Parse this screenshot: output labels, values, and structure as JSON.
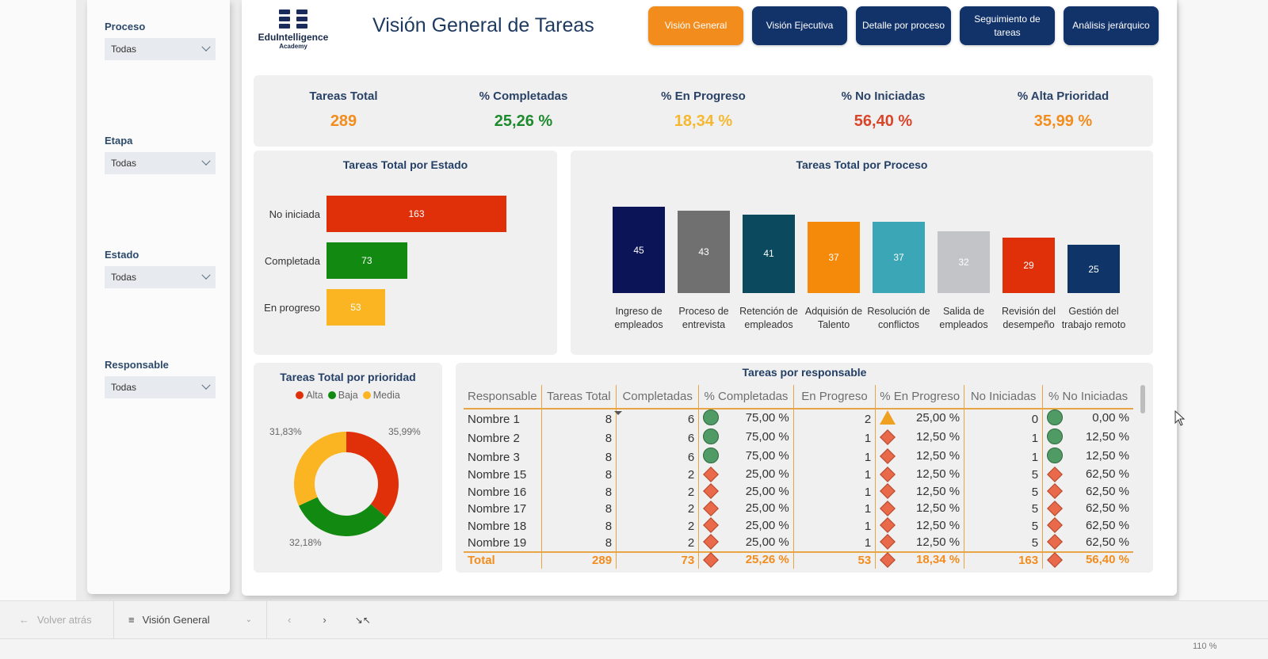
{
  "sidebar": {
    "filters": [
      {
        "label": "Proceso",
        "value": "Todas"
      },
      {
        "label": "Etapa",
        "value": "Todas"
      },
      {
        "label": "Estado",
        "value": "Todas"
      },
      {
        "label": "Responsable",
        "value": "Todas"
      }
    ]
  },
  "header": {
    "logo_name": "EduIntelligence",
    "logo_sub": "Academy",
    "title": "Visión General de Tareas",
    "nav": [
      {
        "label": "Visión General",
        "active": true
      },
      {
        "label": "Visión Ejecutiva",
        "active": false
      },
      {
        "label": "Detalle por proceso",
        "active": false
      },
      {
        "label": "Seguimiento de tareas",
        "active": false
      },
      {
        "label": "Análisis jerárquico",
        "active": false
      }
    ]
  },
  "kpis": [
    {
      "label": "Tareas Total",
      "value": "289",
      "color": "#f28c1c"
    },
    {
      "label": "% Completadas",
      "value": "25,26 %",
      "color": "#1e8a2e"
    },
    {
      "label": "% En Progreso",
      "value": "18,34 %",
      "color": "#f5b830"
    },
    {
      "label": "% No Iniciadas",
      "value": "56,40 %",
      "color": "#d9452a"
    },
    {
      "label": "% Alta Prioridad",
      "value": "35,99 %",
      "color": "#f28c1c"
    }
  ],
  "chart_data": [
    {
      "type": "bar",
      "orientation": "horizontal",
      "title": "Tareas Total por Estado",
      "categories": [
        "No iniciada",
        "Completada",
        "En progreso"
      ],
      "values": [
        163,
        73,
        53
      ],
      "colors": [
        "#e0300a",
        "#128a12",
        "#fbb522"
      ]
    },
    {
      "type": "bar",
      "orientation": "vertical",
      "title": "Tareas Total por Proceso",
      "categories": [
        "Ingreso de empleados",
        "Proceso de entrevista",
        "Retención de empleados",
        "Adquisión de Talento",
        "Resolución de conflictos",
        "Salida de empleados",
        "Revisión del desempeño",
        "Gestión del trabajo remoto"
      ],
      "values": [
        45,
        43,
        41,
        37,
        37,
        32,
        29,
        25
      ],
      "colors": [
        "#0c1458",
        "#707070",
        "#0b4a5e",
        "#f58a0a",
        "#3aa6b6",
        "#c2c4c8",
        "#e0300a",
        "#0f3468"
      ]
    },
    {
      "type": "pie",
      "variant": "donut",
      "title": "Tareas Total por prioridad",
      "legend": [
        "Alta",
        "Baja",
        "Media"
      ],
      "legend_position": "top",
      "slices": [
        {
          "name": "Alta",
          "value": 35.99,
          "label": "35,99%",
          "color": "#e0300a"
        },
        {
          "name": "Baja",
          "value": 32.18,
          "label": "32,18%",
          "color": "#128a12"
        },
        {
          "name": "Media",
          "value": 31.83,
          "label": "31,83%",
          "color": "#fbb522"
        }
      ]
    }
  ],
  "table": {
    "title": "Tareas por responsable",
    "columns": [
      "Responsable",
      "Tareas Total",
      "Completadas",
      "% Completadas",
      "En Progreso",
      "% En Progreso",
      "No Iniciadas",
      "% No Iniciadas"
    ],
    "sorted_column": "Completadas",
    "rows": [
      {
        "name": "Nombre 1",
        "total": "8",
        "comp": "6",
        "comp_pct": "75,00 %",
        "comp_ind": "circle",
        "prog": "2",
        "prog_pct": "25,00 %",
        "prog_ind": "triangle",
        "noini": "0",
        "noini_pct": "0,00 %",
        "noini_ind": "circle"
      },
      {
        "name": "Nombre 2",
        "total": "8",
        "comp": "6",
        "comp_pct": "75,00 %",
        "comp_ind": "circle",
        "prog": "1",
        "prog_pct": "12,50 %",
        "prog_ind": "diamond",
        "noini": "1",
        "noini_pct": "12,50 %",
        "noini_ind": "circle"
      },
      {
        "name": "Nombre 3",
        "total": "8",
        "comp": "6",
        "comp_pct": "75,00 %",
        "comp_ind": "circle",
        "prog": "1",
        "prog_pct": "12,50 %",
        "prog_ind": "diamond",
        "noini": "1",
        "noini_pct": "12,50 %",
        "noini_ind": "circle"
      },
      {
        "name": "Nombre 15",
        "total": "8",
        "comp": "2",
        "comp_pct": "25,00 %",
        "comp_ind": "diamond",
        "prog": "1",
        "prog_pct": "12,50 %",
        "prog_ind": "diamond",
        "noini": "5",
        "noini_pct": "62,50 %",
        "noini_ind": "diamond"
      },
      {
        "name": "Nombre 16",
        "total": "8",
        "comp": "2",
        "comp_pct": "25,00 %",
        "comp_ind": "diamond",
        "prog": "1",
        "prog_pct": "12,50 %",
        "prog_ind": "diamond",
        "noini": "5",
        "noini_pct": "62,50 %",
        "noini_ind": "diamond"
      },
      {
        "name": "Nombre 17",
        "total": "8",
        "comp": "2",
        "comp_pct": "25,00 %",
        "comp_ind": "diamond",
        "prog": "1",
        "prog_pct": "12,50 %",
        "prog_ind": "diamond",
        "noini": "5",
        "noini_pct": "62,50 %",
        "noini_ind": "diamond"
      },
      {
        "name": "Nombre 18",
        "total": "8",
        "comp": "2",
        "comp_pct": "25,00 %",
        "comp_ind": "diamond",
        "prog": "1",
        "prog_pct": "12,50 %",
        "prog_ind": "diamond",
        "noini": "5",
        "noini_pct": "62,50 %",
        "noini_ind": "diamond"
      },
      {
        "name": "Nombre 19",
        "total": "8",
        "comp": "2",
        "comp_pct": "25,00 %",
        "comp_ind": "diamond",
        "prog": "1",
        "prog_pct": "12,50 %",
        "prog_ind": "diamond",
        "noini": "5",
        "noini_pct": "62,50 %",
        "noini_ind": "diamond"
      }
    ],
    "total": {
      "name": "Total",
      "total": "289",
      "comp": "73",
      "comp_pct": "25,26 %",
      "comp_ind": "diamond",
      "prog": "53",
      "prog_pct": "18,34 %",
      "prog_ind": "diamond",
      "noini": "163",
      "noini_pct": "56,40 %",
      "noini_ind": "diamond"
    }
  },
  "bottombar": {
    "back_label": "Volver atrás",
    "page_label": "Visión General"
  },
  "statusbar": {
    "zoom": "110 %"
  }
}
